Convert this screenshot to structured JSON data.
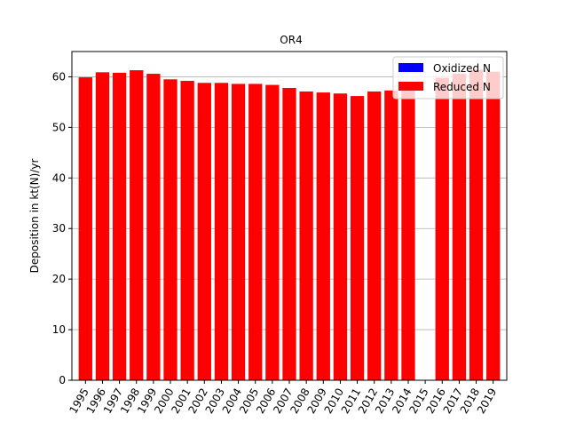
{
  "chart_data": {
    "type": "bar",
    "title": "OR4",
    "xlabel": "",
    "ylabel": "Deposition in kt(N)/yr",
    "ylim": [
      0,
      65
    ],
    "yticks": [
      0,
      10,
      20,
      30,
      40,
      50,
      60
    ],
    "grid": "y",
    "legend_position": "top-right",
    "categories": [
      "1995",
      "1996",
      "1997",
      "1998",
      "1999",
      "2000",
      "2001",
      "2002",
      "2003",
      "2004",
      "2005",
      "2006",
      "2007",
      "2008",
      "2009",
      "2010",
      "2011",
      "2012",
      "2013",
      "2014",
      "2015",
      "2016",
      "2017",
      "2018",
      "2019"
    ],
    "series": [
      {
        "name": "Oxidized N",
        "color": "#0000ff",
        "values": [
          0,
          0,
          0,
          0,
          0,
          0,
          0,
          0,
          0,
          0,
          0,
          0,
          0,
          0,
          0,
          0,
          0,
          0,
          0,
          0,
          0,
          0,
          0,
          0,
          0
        ]
      },
      {
        "name": "Reduced N",
        "color": "#ff0000",
        "values": [
          59.9,
          60.9,
          60.8,
          61.3,
          60.6,
          59.5,
          59.2,
          58.8,
          58.8,
          58.6,
          58.6,
          58.4,
          57.8,
          57.1,
          56.9,
          56.7,
          56.2,
          57.1,
          57.3,
          57.4,
          null,
          59.8,
          60.6,
          61.4,
          61.0
        ]
      }
    ]
  }
}
